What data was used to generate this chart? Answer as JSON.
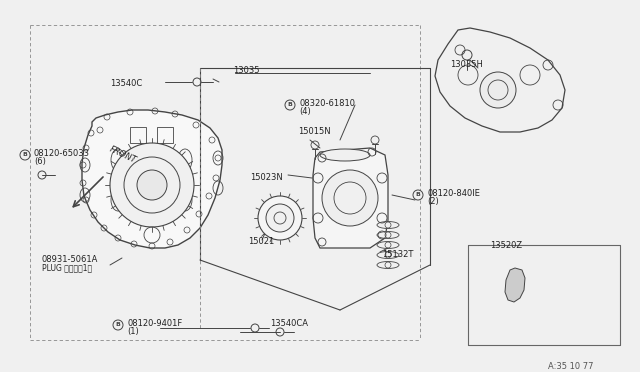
{
  "bg_color": "#f0f0f0",
  "line_color": "#444444",
  "text_color": "#222222",
  "fig_w": 6.4,
  "fig_h": 3.72,
  "dpi": 100,
  "labels": {
    "front": "FRONT",
    "p13540C": "13540C",
    "p08120_65033": "08120-65033",
    "p08120_65033_qty": "(6)",
    "p13035": "13035",
    "p08320_61810": "08320-61810",
    "p08320_61810_qty": "(4)",
    "p15015N": "15015N",
    "p15023N": "15023N",
    "p08120_840lE": "08120-840lE",
    "p08120_840lE_qty": "(2)",
    "p15021": "15021",
    "p15132T": "15132T",
    "p08931_5061A": "08931-5061A",
    "p08931_plug": "PLUG プラグ（1）",
    "p08120_8401F": "08120-9401F",
    "p08120_8401F_qty": "(1)",
    "p13540CA": "13540CA",
    "p13035H": "13035H",
    "p13520Z": "13520Z",
    "ref": "A:35 10 77"
  }
}
